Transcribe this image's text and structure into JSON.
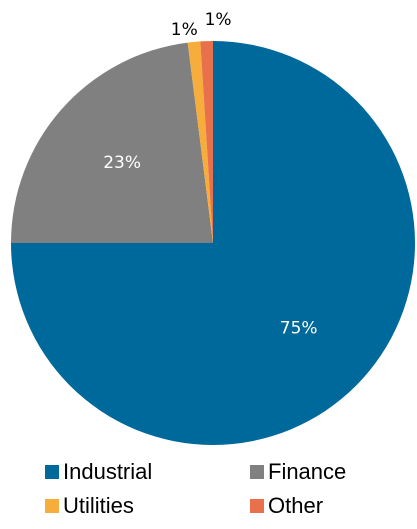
{
  "chart_data": {
    "type": "pie",
    "categories": [
      "Industrial",
      "Finance",
      "Utilities",
      "Other"
    ],
    "values": [
      75,
      23,
      1,
      1
    ],
    "value_labels": [
      "75%",
      "23%",
      "1%",
      "1%"
    ],
    "colors": [
      "#00699b",
      "#808080",
      "#f6ad3c",
      "#e8704a"
    ],
    "legend": "bottom"
  }
}
